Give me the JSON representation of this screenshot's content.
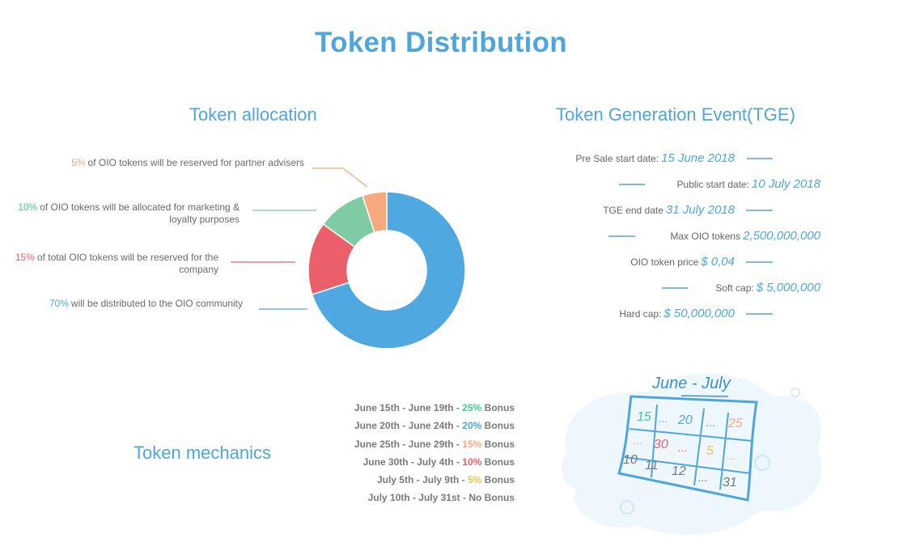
{
  "page": {
    "title": "Token Distribution"
  },
  "allocation": {
    "title": "Token allocation",
    "labels": [
      {
        "pct": "5%",
        "text": "of OIO tokens will be reserved for partner advisers",
        "color": "#f6a97c"
      },
      {
        "pct": "10%",
        "text": "of OIO tokens will be allocated for marketing & loyalty purposes",
        "color": "#7fcba4"
      },
      {
        "pct": "15%",
        "text": "of total OIO tokens will be reserved for the company",
        "color": "#eb5f6a"
      },
      {
        "pct": "70%",
        "text": "will be distributed to the OIO community",
        "color": "#4fa8e0"
      }
    ]
  },
  "chart_data": {
    "type": "pie",
    "donut": true,
    "title": "Token allocation",
    "slices": [
      {
        "label": "OIO community",
        "value": 70,
        "color": "#4fa8e0"
      },
      {
        "label": "Company",
        "value": 15,
        "color": "#eb5f6a"
      },
      {
        "label": "Marketing & loyalty",
        "value": 10,
        "color": "#7fcba4"
      },
      {
        "label": "Partner advisers",
        "value": 5,
        "color": "#f6a97c"
      }
    ]
  },
  "tge": {
    "title": "Token Generation Event(TGE)",
    "rows": [
      {
        "label": "Pre Sale start date:",
        "value": "15 June 2018"
      },
      {
        "label": "Public start date:",
        "value": "10 July 2018"
      },
      {
        "label": "TGE end date",
        "value": "31 July 2018"
      },
      {
        "label": "Max OIO tokens",
        "value": "2,500,000,000"
      },
      {
        "label": "OIO token price",
        "value": "$ 0,04"
      },
      {
        "label": "Soft cap:",
        "value": "$ 5,000,000"
      },
      {
        "label": "Hard cap:",
        "value": "$ 50,000,000"
      }
    ]
  },
  "mechanics": {
    "title": "Token mechanics",
    "rows": [
      {
        "period": "June 15th - June 19th -",
        "bonus": "25%",
        "suffix": "Bonus",
        "color": "#3ecf8e"
      },
      {
        "period": "June 20th - June 24th -",
        "bonus": "20%",
        "suffix": "Bonus",
        "color": "#4ea6dd"
      },
      {
        "period": "June 25th - June 29th -",
        "bonus": "15%",
        "suffix": "Bonus",
        "color": "#f6a97c"
      },
      {
        "period": "June 30th - July 4th -",
        "bonus": "10%",
        "suffix": "Bonus",
        "color": "#eb5f6a"
      },
      {
        "period": "July 5th - July 9th -",
        "bonus": "5%",
        "suffix": "Bonus",
        "color": "#f5c04a"
      },
      {
        "period": "July 10th - July 31st -",
        "bonus": "",
        "suffix": "No Bonus",
        "color": "#7a7a7a"
      }
    ]
  },
  "calendar": {
    "heading": "June - July",
    "cells": [
      "15",
      "...",
      "20",
      "...",
      "25",
      "...",
      "30",
      "...",
      "5",
      "...",
      "10",
      "11",
      "12",
      "...",
      "31"
    ]
  }
}
